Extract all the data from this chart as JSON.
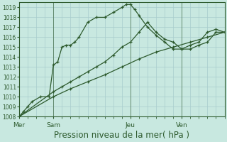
{
  "bg_color": "#c8e8e0",
  "grid_color": "#a8cccc",
  "line_color": "#2d5a2d",
  "xlabel": "Pression niveau de la mer( hPa )",
  "xlabel_fontsize": 8.5,
  "ylim": [
    1008,
    1019.5
  ],
  "ytick_min": 1008,
  "ytick_max": 1019,
  "xlim": [
    0,
    24
  ],
  "day_labels": [
    "Mer",
    "Sam",
    "Jeu",
    "Ven"
  ],
  "day_positions": [
    0,
    4,
    13,
    19
  ],
  "series": [
    {
      "x": [
        0,
        0.5,
        1,
        1.5,
        2.5,
        3.5,
        4,
        4.5,
        5,
        5.5,
        6,
        6.5,
        7,
        8,
        9,
        10,
        11,
        12,
        12.5,
        13,
        13.5,
        14,
        15,
        16,
        17,
        18,
        19,
        20,
        21,
        22,
        23,
        24
      ],
      "y": [
        1008,
        1008.5,
        1009,
        1009.5,
        1010,
        1010,
        1013.2,
        1013.5,
        1015.0,
        1015.2,
        1015.2,
        1015.5,
        1016.0,
        1017.5,
        1018.0,
        1018.0,
        1018.5,
        1019.0,
        1019.3,
        1019.3,
        1018.8,
        1018.2,
        1017.0,
        1016.2,
        1015.5,
        1014.8,
        1014.8,
        1014.8,
        1015.2,
        1015.5,
        1016.5,
        1016.5
      ]
    },
    {
      "x": [
        0,
        4,
        5,
        6,
        7,
        8,
        9,
        10,
        11,
        12,
        13,
        14,
        15,
        16,
        17,
        18,
        19,
        20,
        21,
        22,
        23,
        24
      ],
      "y": [
        1008,
        1010.5,
        1011.0,
        1011.5,
        1012.0,
        1012.5,
        1013.0,
        1013.5,
        1014.2,
        1015.0,
        1015.5,
        1016.5,
        1017.5,
        1016.5,
        1015.8,
        1015.5,
        1014.8,
        1015.2,
        1015.5,
        1016.5,
        1016.8,
        1016.5
      ]
    },
    {
      "x": [
        0,
        4,
        6,
        8,
        10,
        12,
        14,
        16,
        18,
        20,
        22,
        24
      ],
      "y": [
        1008,
        1010.0,
        1010.8,
        1011.5,
        1012.2,
        1013.0,
        1013.8,
        1014.5,
        1015.0,
        1015.5,
        1016.0,
        1016.5
      ]
    }
  ]
}
